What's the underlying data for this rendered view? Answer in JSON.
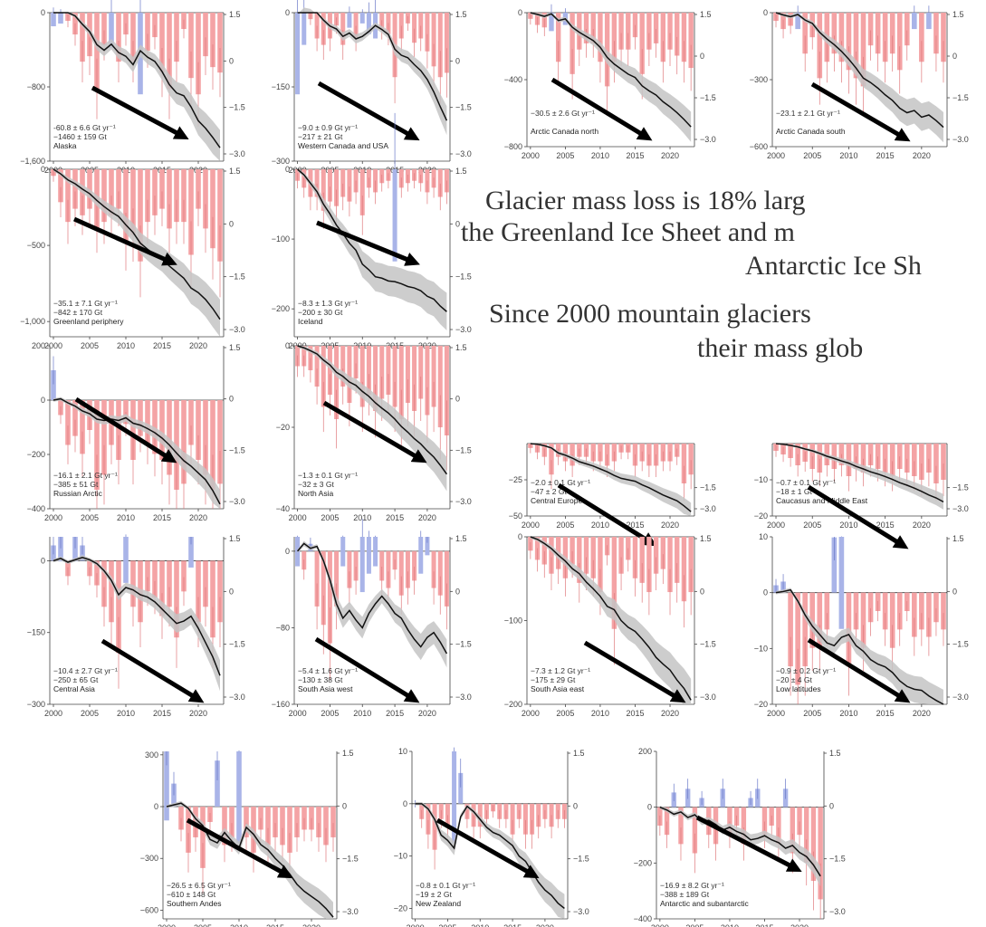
{
  "figure": {
    "colors": {
      "loss_bar": "#f4a3a5",
      "gain_bar": "#a9b4e8",
      "cumulative_line": "#111111",
      "uncertainty_band": "#c4c4c4",
      "trend_arrow": "#000000",
      "axis": "#444444"
    },
    "caption_lines": [
      "Glacier mass loss is 18% larg",
      "the Greenland Ice Sheet and m",
      "Antarctic Ice Sh",
      "Since 2000 mountain glaciers",
      "their mass glob"
    ]
  },
  "chart_data": [
    {
      "type": "bar",
      "region": "Alaska",
      "rate": "-60.8 ± 6.6 Gt yr⁻¹",
      "total": "−1460 ± 159 Gt",
      "left_ticks": [
        0,
        -800,
        -1600
      ],
      "ylim": [
        -1600,
        0
      ],
      "right_ticks": [
        1.5,
        0,
        -1.5,
        -3.0
      ],
      "x_ticks": [
        2000,
        2005,
        2010,
        2015,
        2020
      ],
      "annual": [
        25,
        20,
        -15,
        -40,
        -90,
        -80,
        -140,
        -60,
        65,
        -90,
        -40,
        -90,
        150,
        -70,
        -45,
        -110,
        -140,
        -90,
        -30,
        -120,
        -150,
        -80,
        -100,
        -110
      ],
      "cumulative": [
        0,
        20,
        5,
        -35,
        -125,
        -205,
        -345,
        -405,
        -340,
        -430,
        -470,
        -560,
        -410,
        -480,
        -525,
        -635,
        -775,
        -865,
        -895,
        -1015,
        -1165,
        -1245,
        -1345,
        -1455
      ]
    },
    {
      "type": "bar",
      "region": "Western Canada and USA",
      "rate": "−9.0 ± 0.9 Gt yr⁻¹",
      "total": "−217 ± 21 Gt",
      "left_ticks": [
        0,
        -150,
        -300
      ],
      "ylim": [
        -300,
        0
      ],
      "right_ticks": [
        1.5,
        0,
        -1.5,
        -3.0
      ],
      "x_ticks": [
        2000,
        2005,
        2010,
        2015,
        2020
      ],
      "annual": [
        38,
        15,
        -3,
        -12,
        -15,
        -12,
        -6,
        -15,
        7,
        -12,
        5,
        10,
        12,
        -8,
        -10,
        -30,
        -12,
        -5,
        -14,
        -12,
        -18,
        -25,
        -30,
        -28
      ],
      "cumulative": [
        0,
        15,
        12,
        0,
        -15,
        -27,
        -33,
        -48,
        -41,
        -53,
        -48,
        -38,
        -26,
        -34,
        -44,
        -74,
        -86,
        -91,
        -105,
        -117,
        -135,
        -160,
        -190,
        -218
      ]
    },
    {
      "type": "bar",
      "region": "Arctic Canada north",
      "rate": "−30.5 ± 2.6 Gt yr⁻¹",
      "total": "",
      "left_ticks": [
        0,
        -400,
        -800
      ],
      "ylim": [
        -800,
        0
      ],
      "right_ticks": [
        1.5,
        0,
        -1.5,
        -3.0
      ],
      "x_ticks": [
        2000,
        2005,
        2010,
        2015,
        2020
      ],
      "annual": [
        -5,
        -10,
        -12,
        15,
        -40,
        10,
        -50,
        -30,
        -25,
        -25,
        -40,
        -60,
        -40,
        -30,
        -30,
        -20,
        -50,
        -30,
        -25,
        -40,
        -30,
        -35,
        -40,
        -45
      ],
      "cumulative": [
        0,
        -10,
        -22,
        -7,
        -47,
        -37,
        -87,
        -117,
        -142,
        -167,
        -207,
        -267,
        -307,
        -337,
        -367,
        -387,
        -437,
        -467,
        -492,
        -532,
        -562,
        -597,
        -637,
        -682
      ]
    },
    {
      "type": "bar",
      "region": "Arctic Canada south",
      "rate": "−23.1 ± 2.1 Gt yr⁻¹",
      "total": "",
      "left_ticks": [
        0,
        -300,
        -600
      ],
      "ylim": [
        -600,
        0
      ],
      "right_ticks": [
        1.5,
        0,
        -1.5,
        -3.0
      ],
      "x_ticks": [
        2000,
        2005,
        2010,
        2015,
        2020
      ],
      "annual": [
        -5,
        -10,
        -8,
        10,
        -25,
        -15,
        -40,
        -30,
        -25,
        -30,
        -35,
        -40,
        -45,
        -20,
        -25,
        -30,
        -25,
        -35,
        -20,
        10,
        -30,
        10,
        -25,
        -30
      ],
      "cumulative": [
        0,
        -10,
        -18,
        -8,
        -33,
        -48,
        -88,
        -118,
        -143,
        -173,
        -208,
        -248,
        -293,
        -313,
        -338,
        -368,
        -393,
        -428,
        -448,
        -438,
        -468,
        -458,
        -483,
        -513
      ]
    },
    {
      "type": "bar",
      "region": "Greenland periphery",
      "rate": "−35.1 ± 7.1 Gt yr⁻¹",
      "total": "−842 ± 170 Gt",
      "left_ticks": [
        0,
        -500,
        -1000
      ],
      "ylim": [
        -1100,
        0
      ],
      "right_ticks": [
        1.5,
        0,
        -1.5,
        -3.0
      ],
      "x_ticks": [
        2000,
        2005,
        2010,
        2015,
        2020
      ],
      "annual": [
        -5,
        -25,
        -40,
        -30,
        -35,
        -30,
        -45,
        -40,
        -35,
        -30,
        -55,
        -50,
        -70,
        -40,
        -35,
        -30,
        -45,
        -40,
        -40,
        -65,
        -30,
        -45,
        -60,
        -70
      ],
      "cumulative": [
        0,
        -30,
        -70,
        -95,
        -130,
        -160,
        -205,
        -245,
        -280,
        -310,
        -365,
        -415,
        -485,
        -525,
        -560,
        -590,
        -635,
        -675,
        -715,
        -780,
        -810,
        -855,
        -915,
        -985
      ]
    },
    {
      "type": "bar",
      "region": "Iceland",
      "rate": "−8.3 ± 1.3 Gt yr⁻¹",
      "total": "−200 ± 30 Gt",
      "left_ticks": [
        0,
        -100,
        -200
      ],
      "ylim": [
        -240,
        0
      ],
      "right_ticks": [
        1.5,
        0,
        -1.5,
        -3.0
      ],
      "x_ticks": [
        2000,
        2005,
        2010,
        2015,
        2020
      ],
      "annual": [
        -5,
        -8,
        -12,
        -12,
        -18,
        -14,
        -16,
        -12,
        -14,
        -10,
        -20,
        -8,
        -10,
        -6,
        -5,
        40,
        -8,
        -6,
        -5,
        -6,
        -10,
        -8,
        -12,
        -10
      ],
      "cumulative": [
        0,
        -8,
        -20,
        -32,
        -50,
        -64,
        -80,
        -92,
        -106,
        -116,
        -136,
        -144,
        -154,
        -156,
        -160,
        -161,
        -164,
        -168,
        -170,
        -174,
        -182,
        -186,
        -196,
        -204
      ]
    },
    {
      "type": "bar",
      "region": "Russian Arctic",
      "rate": "−16.1 ± 2.1 Gt yr⁻¹",
      "total": "−385 ± 51 Gt",
      "left_ticks": [
        200,
        0,
        -200,
        -400
      ],
      "ylim": [
        -400,
        200
      ],
      "right_ticks": [
        1.5,
        0,
        -1.5,
        -3.0
      ],
      "x_ticks": [
        2000,
        2005,
        2010,
        2015,
        2020
      ],
      "annual": [
        10,
        -5,
        -15,
        -12,
        -18,
        -10,
        -30,
        -25,
        -15,
        -20,
        -8,
        -20,
        -12,
        -15,
        -18,
        -20,
        -25,
        -30,
        -28,
        -15,
        -20,
        -25,
        -30,
        -28
      ],
      "cumulative": [
        0,
        5,
        -10,
        -22,
        -40,
        -50,
        -70,
        -75,
        -70,
        -75,
        -65,
        -85,
        -92,
        -105,
        -120,
        -140,
        -165,
        -195,
        -223,
        -243,
        -268,
        -293,
        -333,
        -383
      ]
    },
    {
      "type": "bar",
      "region": "North Asia",
      "rate": "−1.3 ± 0.1 Gt yr⁻¹",
      "total": "−32 ± 3 Gt",
      "left_ticks": [
        0,
        -20,
        -40
      ],
      "ylim": [
        -40,
        0
      ],
      "right_ticks": [
        1.5,
        0,
        -1.5,
        -3.0
      ],
      "x_ticks": [
        2000,
        2005,
        2010,
        2015,
        2020
      ],
      "annual": [
        -0.5,
        -0.5,
        -0.6,
        -1,
        -1.5,
        -1.2,
        -1.8,
        -1,
        -1.4,
        -0.8,
        -1.5,
        -1.2,
        -1.6,
        -1.3,
        -1.2,
        -1.5,
        -1.8,
        -1.4,
        -1.6,
        -1.3,
        -1.7,
        -1.5,
        -2,
        -2.2
      ],
      "cumulative": [
        0,
        -0.5,
        -1.2,
        -2,
        -3.5,
        -4.7,
        -6.5,
        -7.5,
        -8.9,
        -9.7,
        -11.2,
        -12.4,
        -14,
        -15.3,
        -16.5,
        -18,
        -19.8,
        -21.2,
        -22.8,
        -24.1,
        -25.8,
        -27.3,
        -29.3,
        -31.5
      ]
    },
    {
      "type": "bar",
      "region": "Central Europe",
      "rate": "−2.0 ± 0.1 Gt yr⁻¹",
      "total": "−47 ± 2 Gt",
      "left_ticks": [
        -25,
        -50
      ],
      "ylim": [
        -50,
        0
      ],
      "right_ticks": [
        -1.5,
        -3.0
      ],
      "x_ticks": [
        2000,
        2005,
        2010,
        2015,
        2020
      ],
      "annual": [
        -0.5,
        -1,
        -1.5,
        -3.5,
        -1.5,
        -2,
        -2.5,
        -1.5,
        -1.5,
        -2,
        -2,
        -2.5,
        -2,
        -1,
        -1,
        -2.5,
        -2,
        -2.5,
        -2.5,
        -2,
        -2,
        -1.5,
        -4.5,
        -3.5
      ],
      "cumulative": [
        0,
        -0.5,
        -1.5,
        -3,
        -6.5,
        -8,
        -10,
        -12.5,
        -14,
        -15.5,
        -17.5,
        -19.5,
        -22,
        -24,
        -25,
        -26,
        -28.5,
        -30.5,
        -33,
        -35.5,
        -37.5,
        -39.5,
        -43,
        -47
      ]
    },
    {
      "type": "bar",
      "region": "Caucasus and Middle East",
      "rate": "−0.7 ± 0.1 Gt yr⁻¹",
      "total": "−18 ± 1 Gt",
      "left_ticks": [
        -10,
        -20
      ],
      "ylim": [
        -20,
        0
      ],
      "right_ticks": [
        -1.5,
        -3.0
      ],
      "x_ticks": [
        2000,
        2005,
        2010,
        2015,
        2020
      ],
      "annual": [
        -0.2,
        -0.3,
        -0.4,
        -0.6,
        -0.5,
        -0.7,
        -0.8,
        -0.6,
        -0.7,
        -0.6,
        -0.9,
        -0.7,
        -0.8,
        -0.6,
        -0.7,
        -0.8,
        -0.9,
        -0.7,
        -0.8,
        -0.9,
        -1,
        -0.8,
        -1.1,
        -1
      ],
      "cumulative": [
        0,
        -0.2,
        -0.5,
        -0.9,
        -1.5,
        -2,
        -2.7,
        -3.5,
        -4.1,
        -4.8,
        -5.4,
        -6.3,
        -7,
        -7.8,
        -8.4,
        -9.1,
        -9.9,
        -10.8,
        -11.5,
        -12.3,
        -13.2,
        -14.2,
        -15,
        -16.1
      ]
    },
    {
      "type": "bar",
      "region": "Central Asia",
      "rate": "−10.4 ± 2.7 Gt yr⁻¹",
      "total": "−250 ± 65 Gt",
      "left_ticks": [
        0,
        -150,
        -300
      ],
      "ylim": [
        -300,
        50
      ],
      "right_ticks": [
        1.5,
        0,
        -1.5,
        -3.0
      ],
      "x_ticks": [
        2000,
        2005,
        2010,
        2015,
        2020
      ],
      "annual": [
        5,
        8,
        -5,
        8,
        5,
        -5,
        -8,
        -15,
        -20,
        -30,
        15,
        -15,
        -20,
        -10,
        -12,
        -18,
        -15,
        -25,
        -10,
        10,
        -20,
        -15,
        -25,
        -20
      ],
      "cumulative": [
        0,
        5,
        -3,
        2,
        7,
        2,
        -6,
        -21,
        -41,
        -71,
        -56,
        -61,
        -71,
        -76,
        -86,
        -101,
        -116,
        -131,
        -126,
        -116,
        -141,
        -171,
        -201,
        -240
      ]
    },
    {
      "type": "bar",
      "region": "South Asia west",
      "rate": "−5.4 ± 1.6 Gt yr⁻¹",
      "total": "−130 ± 38 Gt",
      "left_ticks": [
        0,
        -80,
        -160
      ],
      "ylim": [
        -160,
        15
      ],
      "right_ticks": [
        1.5,
        0,
        -1.5,
        -3.0
      ],
      "x_ticks": [
        2000,
        2005,
        2010,
        2015,
        2020
      ],
      "annual": [
        8,
        -5,
        2,
        -15,
        -20,
        -25,
        -15,
        8,
        -10,
        -8,
        15,
        10,
        8,
        -8,
        -10,
        -5,
        -12,
        -10,
        -8,
        10,
        5,
        -10,
        -12,
        -15
      ],
      "cumulative": [
        0,
        8,
        3,
        5,
        -10,
        -30,
        -55,
        -70,
        -62,
        -72,
        -80,
        -65,
        -55,
        -47,
        -55,
        -65,
        -70,
        -82,
        -92,
        -100,
        -90,
        -85,
        -95,
        -107
      ]
    },
    {
      "type": "bar",
      "region": "South Asia east",
      "rate": "−7.3 ± 1.2 Gt yr⁻¹",
      "total": "−175 ± 29 Gt",
      "left_ticks": [
        0,
        -100,
        -200
      ],
      "ylim": [
        -200,
        0
      ],
      "right_ticks": [
        1.5,
        0,
        -1.5,
        -3.0
      ],
      "x_ticks": [
        2000,
        2005,
        2010,
        2015,
        2020
      ],
      "annual": [
        -3,
        -5,
        -6,
        -8,
        -7,
        -9,
        -6,
        -10,
        -8,
        -9,
        -12,
        -4,
        -20,
        -8,
        -5,
        -9,
        -10,
        -12,
        -8,
        -7,
        -12,
        -10,
        -14,
        -12
      ],
      "cumulative": [
        0,
        -3,
        -8,
        -14,
        -22,
        -29,
        -38,
        -44,
        -54,
        -62,
        -71,
        -83,
        -87,
        -100,
        -108,
        -113,
        -122,
        -132,
        -144,
        -152,
        -159,
        -171,
        -181,
        -195
      ]
    },
    {
      "type": "bar",
      "region": "Low latitudes",
      "rate": "−0.9 ± 0.2 Gt yr⁻¹",
      "total": "−20 ± 4 Gt",
      "left_ticks": [
        10,
        0,
        -10,
        -20
      ],
      "ylim": [
        -20,
        10
      ],
      "right_ticks": [
        1.5,
        0,
        -1.5,
        -3.0
      ],
      "x_ticks": [
        2000,
        2005,
        2010,
        2015,
        2020
      ],
      "annual": [
        0.2,
        0.3,
        -2,
        -2.5,
        -2,
        -1.5,
        -1.5,
        -1,
        1.5,
        2.5,
        -2,
        -1,
        -1.5,
        -0.8,
        -0.5,
        -1,
        -1.5,
        -1,
        -0.5,
        -1.2,
        -1,
        -1.2,
        -0.8,
        -1
      ],
      "cumulative": [
        0,
        0.2,
        0.5,
        -1.5,
        -4,
        -6,
        -7.5,
        -9,
        -9.5,
        -8,
        -7.5,
        -9.5,
        -10.5,
        -12,
        -12.8,
        -13.3,
        -14.3,
        -15.8,
        -16.8,
        -17.3,
        -17.5,
        -18.5,
        -19.3,
        -20.1
      ]
    },
    {
      "type": "bar",
      "region": "Southern Andes",
      "rate": "−26.5 ± 6.5 Gt yr⁻¹",
      "total": "−610 ± 148 Gt",
      "left_ticks": [
        300,
        0,
        -300,
        -600
      ],
      "ylim": [
        -650,
        320
      ],
      "right_ticks": [
        1.5,
        0,
        -1.5,
        -3.0
      ],
      "x_ticks": [
        2000,
        2005,
        2010,
        2015,
        2020
      ],
      "annual": [
        90,
        30,
        -30,
        -60,
        -40,
        -80,
        -20,
        60,
        -50,
        -40,
        120,
        -40,
        -60,
        -30,
        -50,
        -40,
        -50,
        -60,
        -40,
        -30,
        -30,
        -40,
        -50,
        -40
      ],
      "cumulative": [
        0,
        10,
        20,
        -10,
        -70,
        -110,
        -190,
        -210,
        -150,
        -200,
        -240,
        -120,
        -160,
        -220,
        -250,
        -300,
        -340,
        -390,
        -450,
        -490,
        -520,
        -550,
        -590,
        -640
      ]
    },
    {
      "type": "bar",
      "region": "New Zealand",
      "rate": "−0.8 ± 0.1 Gt yr⁻¹",
      "total": "−19 ± 2 Gt",
      "left_ticks": [
        10,
        0,
        -10,
        -20
      ],
      "ylim": [
        -22,
        10
      ],
      "right_ticks": [
        1.5,
        0,
        -1.5,
        -3.0
      ],
      "x_ticks": [
        2000,
        2005,
        2010,
        2015,
        2020
      ],
      "annual": [
        0,
        -1,
        -2,
        -3,
        -1,
        -1.5,
        6,
        2,
        -1,
        -1.5,
        -1.5,
        -1,
        -0.5,
        -1,
        -1,
        -2,
        -1,
        -2,
        -2,
        -1.5,
        -1,
        -1.5,
        -1,
        -1
      ],
      "cumulative": [
        0,
        0,
        -1,
        -3,
        -6,
        -7,
        -8.5,
        -2.5,
        -0.5,
        -1.5,
        -3,
        -4.5,
        -5.5,
        -6,
        -7,
        -8,
        -10,
        -11,
        -13,
        -15,
        -16.5,
        -17.5,
        -19,
        -20
      ]
    },
    {
      "type": "bar",
      "region": "Antarctic and subantarctic",
      "rate": "−16.9 ± 8.2 Gt yr⁻¹",
      "total": "−388 ± 189 Gt",
      "left_ticks": [
        200,
        0,
        -200,
        -400
      ],
      "ylim": [
        -400,
        200
      ],
      "right_ticks": [
        1.5,
        0,
        -1.5,
        -3.0
      ],
      "x_ticks": [
        2000,
        2005,
        2010,
        2015,
        2020
      ],
      "annual": [
        -10,
        -15,
        8,
        -20,
        10,
        -25,
        5,
        -15,
        -20,
        10,
        -15,
        -10,
        -20,
        5,
        10,
        -15,
        -10,
        -20,
        10,
        -25,
        -15,
        -30,
        -40,
        -50
      ],
      "cumulative": [
        0,
        -10,
        -25,
        -17,
        -37,
        -27,
        -52,
        -47,
        -62,
        -82,
        -72,
        -87,
        -97,
        -117,
        -112,
        -102,
        -117,
        -127,
        -147,
        -137,
        -162,
        -177,
        -207,
        -247
      ]
    }
  ]
}
